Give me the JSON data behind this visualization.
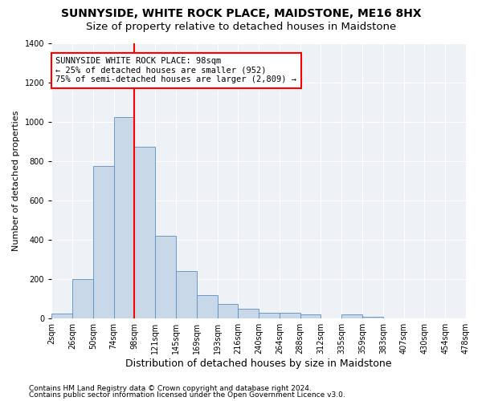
{
  "title": "SUNNYSIDE, WHITE ROCK PLACE, MAIDSTONE, ME16 8HX",
  "subtitle": "Size of property relative to detached houses in Maidstone",
  "xlabel": "Distribution of detached houses by size in Maidstone",
  "ylabel": "Number of detached properties",
  "footer1": "Contains HM Land Registry data © Crown copyright and database right 2024.",
  "footer2": "Contains public sector information licensed under the Open Government Licence v3.0.",
  "bin_labels": [
    "2sqm",
    "26sqm",
    "50sqm",
    "74sqm",
    "98sqm",
    "121sqm",
    "145sqm",
    "169sqm",
    "193sqm",
    "216sqm",
    "240sqm",
    "264sqm",
    "288sqm",
    "312sqm",
    "335sqm",
    "359sqm",
    "383sqm",
    "407sqm",
    "430sqm",
    "454sqm",
    "478sqm"
  ],
  "bar_heights": [
    25,
    200,
    775,
    1025,
    875,
    420,
    240,
    120,
    75,
    50,
    30,
    30,
    20,
    0,
    20,
    10,
    0,
    0,
    0,
    0
  ],
  "bar_color": "#c8d8e8",
  "bar_edge_color": "#5a8fc0",
  "vline_pos": 4,
  "vline_color": "red",
  "annotation_text": "SUNNYSIDE WHITE ROCK PLACE: 98sqm\n← 25% of detached houses are smaller (952)\n75% of semi-detached houses are larger (2,809) →",
  "ylim": [
    0,
    1400
  ],
  "yticks": [
    0,
    200,
    400,
    600,
    800,
    1000,
    1200,
    1400
  ],
  "bg_color": "#eef2f7",
  "grid_color": "white",
  "title_fontsize": 10,
  "subtitle_fontsize": 9.5,
  "xlabel_fontsize": 9,
  "ylabel_fontsize": 8,
  "tick_fontsize": 7,
  "annotation_fontsize": 7.5,
  "footer_fontsize": 6.5
}
